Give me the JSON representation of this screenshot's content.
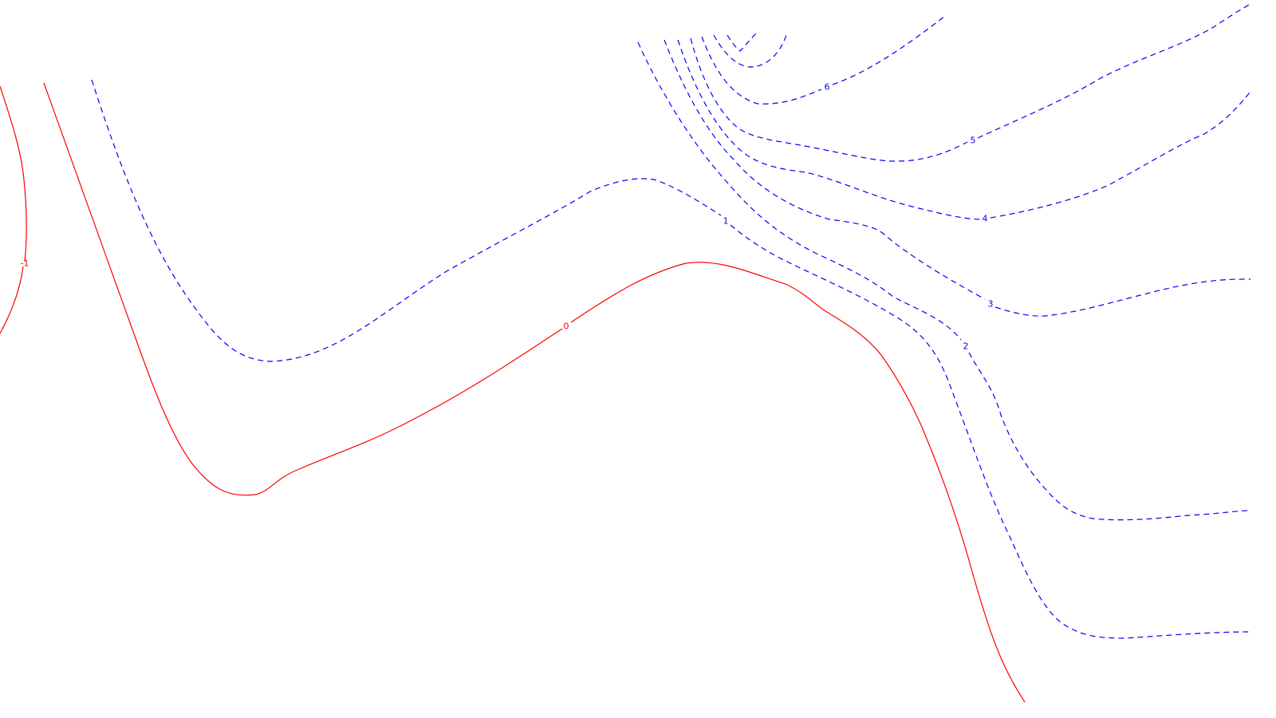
{
  "chart_data": {
    "type": "contour",
    "title": "",
    "xlabel": "",
    "ylabel": "",
    "grid": false,
    "legend": "none",
    "colors": {
      "negative_and_zero": "#ff0000",
      "positive": "#0000ff"
    },
    "line_styles": {
      "negative_and_zero": "solid",
      "positive": "dashed"
    },
    "levels": [
      {
        "value": -1,
        "label": "-1",
        "style": "solid",
        "color": "#ff0000"
      },
      {
        "value": 0,
        "label": "0",
        "style": "solid",
        "color": "#ff0000"
      },
      {
        "value": 1,
        "label": "1",
        "style": "dashed",
        "color": "#0000ff"
      },
      {
        "value": 2,
        "label": "2",
        "style": "dashed",
        "color": "#0000ff"
      },
      {
        "value": 3,
        "label": "3",
        "style": "dashed",
        "color": "#0000ff"
      },
      {
        "value": 4,
        "label": "4",
        "style": "dashed",
        "color": "#0000ff"
      },
      {
        "value": 5,
        "label": "5",
        "style": "dashed",
        "color": "#0000ff"
      },
      {
        "value": 6,
        "label": "6",
        "style": "dashed",
        "color": "#0000ff"
      },
      {
        "value": 7,
        "label": "",
        "style": "dashed",
        "color": "#0000ff"
      }
    ]
  }
}
